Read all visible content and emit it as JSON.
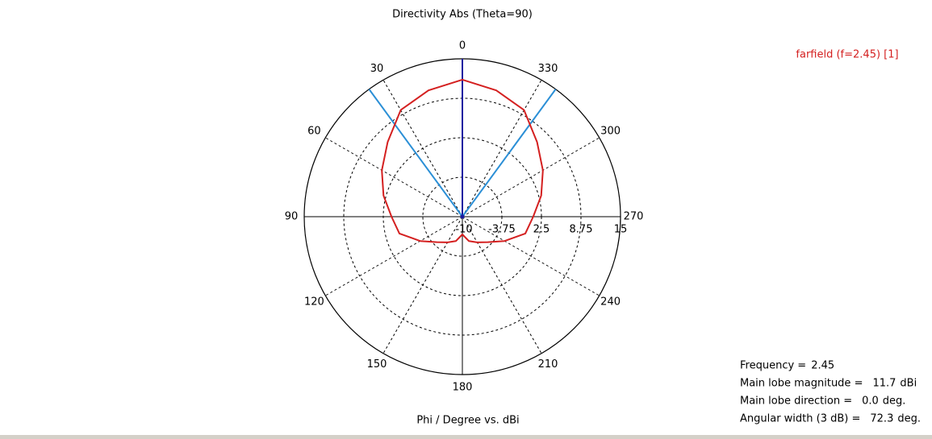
{
  "chart_data": {
    "type": "polar",
    "title": "Directivity Abs (Theta=90)",
    "axis_label": "Phi / Degree vs. dBi",
    "direction": "counterclockwise",
    "rlim": [
      -10,
      15
    ],
    "rticks": [
      -10,
      -3.75,
      2.5,
      8.75,
      15
    ],
    "thetaticks": [
      0,
      30,
      60,
      90,
      120,
      150,
      180,
      210,
      240,
      270,
      300,
      330
    ],
    "series": [
      {
        "name": "farfield (f=2.45) [1]",
        "color": "#d42020",
        "x": [
          0,
          15,
          30,
          45,
          60,
          75,
          90,
          105,
          120,
          135,
          150,
          165,
          180,
          195,
          210,
          225,
          240,
          255,
          270,
          285,
          300,
          315,
          330,
          345
        ],
        "values": [
          11.7,
          10.7,
          9.5,
          6.7,
          4.7,
          2.9,
          1.2,
          0.3,
          -2.3,
          -4.3,
          -5.3,
          -6,
          -7.2,
          -6,
          -5.3,
          -4.3,
          -2.3,
          0.3,
          1.2,
          2.9,
          4.7,
          6.7,
          9.5,
          10.7
        ]
      }
    ],
    "info": [
      {
        "label": "Frequency =",
        "value": 2.45
      },
      {
        "label": "Main lobe magnitude =",
        "value": 11.7,
        "unit": "dBi"
      },
      {
        "label": "Main lobe direction =",
        "value": 0,
        "value_label": "0.0",
        "unit": "deg."
      },
      {
        "label": "Angular width (3 dB) =",
        "value": 72.3,
        "unit": "deg."
      }
    ]
  }
}
